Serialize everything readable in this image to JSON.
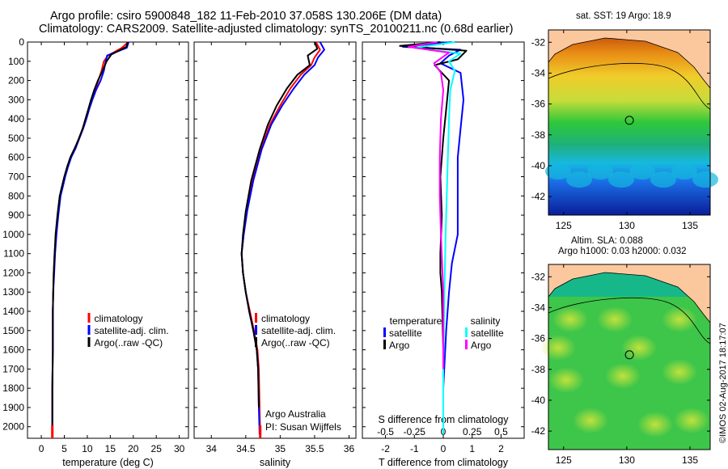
{
  "header": {
    "title_line1": "Argo profile: csiro 5900848_182 11-Feb-2010 37.058S 130.206E (DM data)",
    "title_line2": "Climatology: CARS2009. Satellite-adjusted climatology: synTS_20100211.nc (0.68d earlier)"
  },
  "maps": {
    "sst_title": "sat. SST: 19 Argo: 18.9",
    "sla_title_line1": "Altim. SLA: 0.088",
    "sla_title_line2": "Argo h1000: 0.03 h2000: 0.032",
    "lat_ticks": [
      "-32",
      "-34",
      "-36",
      "-38",
      "-40",
      "-42"
    ],
    "lon_ticks": [
      "125",
      "130",
      "135"
    ]
  },
  "stamp": "©IMOS 02-Aug-2017 18:17:07",
  "chart_data": [
    {
      "type": "line",
      "title": "temperature profile",
      "xlabel": "temperature (deg C)",
      "ylabel": "",
      "xlim": [
        -3,
        32
      ],
      "ylim": [
        2060,
        0
      ],
      "xticks": [
        "0",
        "5",
        "10",
        "15",
        "20",
        "25",
        "30"
      ],
      "yticks": [
        "0",
        "100",
        "200",
        "300",
        "400",
        "500",
        "600",
        "700",
        "800",
        "900",
        "1000",
        "1100",
        "1200",
        "1300",
        "1400",
        "1500",
        "1600",
        "1700",
        "1800",
        "1900",
        "2000"
      ],
      "legend": [
        "climatology",
        "satellite-adj. clim.",
        "Argo(..raw -QC)"
      ],
      "legend_position": "bottom-center",
      "series": [
        {
          "name": "climatology",
          "color": "#ff0000",
          "x": [
            18.9,
            17.5,
            14.5,
            13.6,
            13.1,
            12.4,
            11.7,
            11.0,
            10.3,
            9.7,
            9.0,
            8.2,
            7.4,
            6.4,
            5.7,
            5.1,
            4.6,
            4.1,
            3.6,
            3.2,
            2.9,
            2.7,
            2.6,
            2.5,
            2.5,
            2.4,
            2.4
          ],
          "y": [
            0,
            30,
            70,
            100,
            150,
            200,
            250,
            300,
            350,
            400,
            450,
            500,
            550,
            600,
            650,
            700,
            750,
            800,
            900,
            1000,
            1100,
            1200,
            1300,
            1400,
            1600,
            1800,
            2040
          ]
        },
        {
          "name": "satellite-adj. clim.",
          "color": "#0000ff",
          "x": [
            19.0,
            18.6,
            14.3,
            14.0,
            13.6,
            12.9,
            11.9,
            11.1,
            10.4,
            9.8,
            9.1,
            8.3,
            7.5,
            6.5,
            5.8,
            5.2,
            4.7,
            4.2,
            3.7,
            3.3,
            3.0,
            2.8,
            2.6,
            2.5,
            2.5,
            2.4,
            2.4
          ],
          "y": [
            0,
            30,
            70,
            100,
            150,
            200,
            250,
            300,
            350,
            400,
            450,
            500,
            550,
            600,
            650,
            700,
            750,
            800,
            900,
            1000,
            1100,
            1200,
            1300,
            1400,
            1600,
            1800,
            2040
          ]
        },
        {
          "name": "Argo(..raw -QC)",
          "color": "#000000",
          "x": [
            18.8,
            18.5,
            15.2,
            14.2,
            13.3,
            12.3,
            11.5,
            10.8,
            10.2,
            9.6,
            9.0,
            8.2,
            7.3,
            6.3,
            5.6,
            5.0,
            4.5,
            4.0,
            3.5,
            3.1,
            2.9,
            2.7,
            2.6,
            2.5,
            2.5,
            2.4,
            2.4
          ],
          "y": [
            0,
            25,
            65,
            100,
            150,
            200,
            250,
            300,
            350,
            400,
            450,
            500,
            550,
            600,
            650,
            700,
            750,
            800,
            900,
            1000,
            1100,
            1200,
            1300,
            1400,
            1600,
            1800,
            2040
          ]
        }
      ]
    },
    {
      "type": "line",
      "title": "salinity profile",
      "xlabel": "salinity",
      "ylabel": "",
      "xlim": [
        33.75,
        36.1
      ],
      "ylim": [
        2060,
        0
      ],
      "xticks": [
        "34",
        "34.5",
        "35",
        "35.5",
        "36"
      ],
      "legend": [
        "climatology",
        "satellite-adj. clim.",
        "Argo(..raw -QC)"
      ],
      "legend_position": "bottom-center",
      "annotations": [
        "Argo Australia",
        "PI: Susan Wijffels"
      ],
      "series": [
        {
          "name": "climatology",
          "color": "#ff0000",
          "x": [
            35.52,
            35.58,
            35.5,
            35.45,
            35.3,
            35.15,
            35.0,
            34.85,
            34.72,
            34.6,
            34.52,
            34.47,
            34.44,
            34.46,
            34.5,
            34.56,
            34.62,
            34.67,
            34.69,
            34.7,
            34.71
          ],
          "y": [
            0,
            40,
            80,
            120,
            170,
            240,
            330,
            430,
            560,
            720,
            880,
            1000,
            1100,
            1200,
            1300,
            1400,
            1500,
            1600,
            1700,
            1900,
            2040
          ]
        },
        {
          "name": "satellite-adj. clim.",
          "color": "#0000ff",
          "x": [
            35.58,
            35.64,
            35.55,
            35.5,
            35.35,
            35.2,
            35.03,
            34.87,
            34.73,
            34.61,
            34.52,
            34.47,
            34.44,
            34.46,
            34.5,
            34.55,
            34.61,
            34.66,
            34.68,
            34.69,
            34.7
          ],
          "y": [
            0,
            40,
            80,
            120,
            170,
            240,
            330,
            430,
            560,
            720,
            880,
            1000,
            1100,
            1200,
            1300,
            1400,
            1500,
            1600,
            1700,
            1900,
            2040
          ]
        },
        {
          "name": "Argo(..raw -QC)",
          "color": "#000000",
          "x": [
            35.5,
            35.54,
            35.4,
            35.43,
            35.25,
            35.1,
            34.95,
            34.82,
            34.7,
            34.58,
            34.5,
            34.46,
            34.44,
            34.46,
            34.5,
            34.55,
            34.61,
            34.66,
            34.68,
            34.69
          ],
          "y": [
            0,
            35,
            70,
            120,
            170,
            240,
            330,
            430,
            560,
            720,
            880,
            1000,
            1100,
            1200,
            1300,
            1400,
            1500,
            1600,
            1700,
            1900
          ]
        }
      ]
    },
    {
      "type": "line",
      "title": "difference from climatology",
      "xlabel": "T difference from climatology",
      "x2label": "S difference from climatology",
      "xlim": [
        -2.8,
        2.8
      ],
      "x2lim": [
        -0.7,
        0.7
      ],
      "ylim": [
        2060,
        0
      ],
      "xticks": [
        "-2",
        "-1",
        "0",
        "1",
        "2"
      ],
      "x2ticks": [
        "-0.5",
        "-0.25",
        "0",
        "0.25",
        "0.5"
      ],
      "legend_temperature_header": "temperature",
      "legend_salinity_header": "salinity",
      "legend": [
        "satellite",
        "Argo",
        "satellite",
        "Argo"
      ],
      "legend_position": "bottom-center",
      "series": [
        {
          "name": "temperature satellite",
          "color": "#0000ff",
          "x": [
            0.3,
            -1.4,
            0.6,
            0.2,
            -0.1,
            0.6,
            0.7,
            0.6,
            0.5,
            0.5,
            0.5,
            0.3,
            0.2,
            0.1,
            0,
            0
          ],
          "y": [
            0,
            25,
            40,
            70,
            110,
            160,
            300,
            450,
            600,
            800,
            1000,
            1150,
            1300,
            1500,
            1800,
            2040
          ]
        },
        {
          "name": "temperature Argo",
          "color": "#000000",
          "x": [
            -0.1,
            -1.5,
            0.8,
            0.5,
            -0.3,
            0.2,
            0.1,
            0.0,
            -0.1,
            -0.05,
            -0.1,
            -0.1,
            -0.05,
            0,
            0
          ],
          "y": [
            0,
            20,
            45,
            90,
            120,
            200,
            350,
            500,
            700,
            900,
            1100,
            1200,
            1300,
            1600,
            1900
          ]
        },
        {
          "name": "salinity satellite",
          "color": "#00ffff",
          "x": [
            0.1,
            -0.25,
            0.15,
            0.05,
            0.1,
            0.06,
            0.05,
            0.04,
            0.03,
            0.02,
            0.01,
            0.0,
            0.0
          ],
          "y": [
            0,
            30,
            60,
            100,
            150,
            250,
            400,
            600,
            800,
            1000,
            1300,
            1700,
            2040
          ]
        },
        {
          "name": "salinity Argo",
          "color": "#ff00ff",
          "x": [
            -0.05,
            -0.3,
            0.05,
            -0.08,
            -0.02,
            0.0,
            -0.02,
            -0.03,
            -0.03,
            -0.02,
            0.0,
            0.0
          ],
          "y": [
            0,
            25,
            55,
            110,
            160,
            250,
            400,
            600,
            800,
            1000,
            1300,
            1700
          ]
        }
      ]
    }
  ]
}
